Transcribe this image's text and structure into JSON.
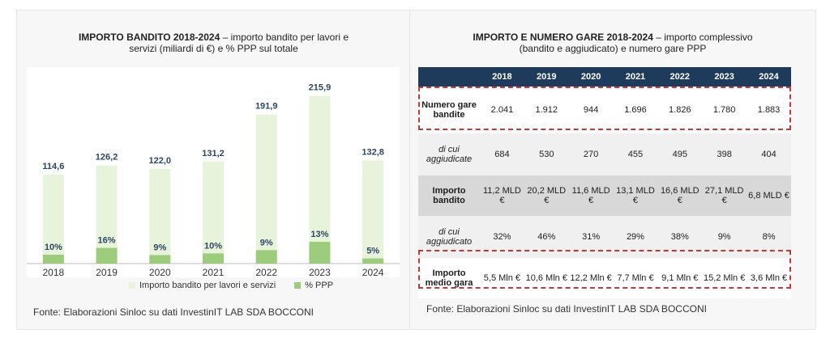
{
  "left": {
    "title_bold": "IMPORTO BANDITO 2018-2024",
    "title_rest_1": " – importo bandito per lavori e",
    "title_line2": "servizi (miliardi di €) e % PPP sul totale",
    "source": "Fonte: Elaborazioni Sinloc su dati InvestinIT LAB SDA BOCCONI"
  },
  "right": {
    "title_bold": "IMPORTO E NUMERO GARE 2018-2024",
    "title_rest_1": " – importo complessivo",
    "title_line2": "(bandito e aggiudicato) e numero gare PPP",
    "source": "Fonte: Elaborazioni Sinloc su dati InvestinIT LAB SDA BOCCONI"
  },
  "colors": {
    "bar_total": "#e8f3dc",
    "bar_ppp": "#9ccc7c",
    "header_bg": "#1f3b5c",
    "label_blue": "#2f4563",
    "dash_red": "#c0393b"
  },
  "chart_data": {
    "type": "bar",
    "categories": [
      "2018",
      "2019",
      "2020",
      "2021",
      "2022",
      "2023",
      "2024"
    ],
    "series": [
      {
        "name": "Importo bandito per lavori e servizi",
        "values": [
          114.6,
          126.2,
          122.0,
          131.2,
          191.9,
          215.9,
          132.8
        ]
      },
      {
        "name": "% PPP",
        "values": [
          10,
          16,
          9,
          10,
          9,
          13,
          5
        ]
      }
    ],
    "value_labels": [
      "114,6",
      "126,2",
      "122,0",
      "131,2",
      "191,9",
      "215,9",
      "132,8"
    ],
    "pct_labels": [
      "10%",
      "16%",
      "9%",
      "10%",
      "9%",
      "13%",
      "5%"
    ],
    "ylim": [
      0,
      230
    ],
    "grid": false,
    "legend_position": "bottom"
  },
  "table": {
    "headers": [
      "",
      "2018",
      "2019",
      "2020",
      "2021",
      "2022",
      "2023",
      "2024"
    ],
    "rows": [
      {
        "label": "Numero gare bandite",
        "italic": false,
        "values": [
          "2.041",
          "1.912",
          "944",
          "1.696",
          "1.826",
          "1.780",
          "1.883"
        ]
      },
      {
        "label": "di cui aggiudicate",
        "italic": true,
        "values": [
          "684",
          "530",
          "270",
          "455",
          "495",
          "398",
          "404"
        ]
      },
      {
        "label": "Importo bandito",
        "italic": false,
        "values": [
          "11,2 MLD €",
          "20,2 MLD €",
          "11,6 MLD €",
          "13,1 MLD €",
          "16,6 MLD €",
          "27,1 MLD €",
          "6,8 MLD €"
        ]
      },
      {
        "label": "di cui aggiudicato",
        "italic": true,
        "values": [
          "32%",
          "46%",
          "31%",
          "29%",
          "38%",
          "9%",
          "8%"
        ]
      },
      {
        "label": "Importo medio gara",
        "italic": false,
        "values": [
          "5,5 Mln €",
          "10,6 Mln €",
          "12,2 Mln €",
          "7,7 Mln €",
          "9,1 Mln €",
          "15,2 Mln €",
          "3,6 Mln €"
        ]
      }
    ]
  }
}
